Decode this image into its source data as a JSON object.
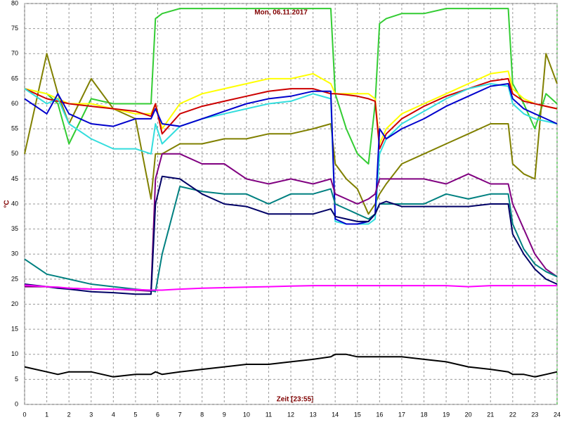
{
  "chart_data": {
    "type": "line",
    "title": "Mon, 06.11.2017",
    "xlabel": "Zeit [23:55]",
    "ylabel": "°C",
    "x": [
      0,
      1,
      1.5,
      2,
      3,
      4,
      5,
      5.7,
      5.9,
      6.2,
      7,
      8,
      9,
      10,
      11,
      12,
      13,
      13.8,
      14,
      14.5,
      15,
      15.5,
      15.8,
      16,
      16.3,
      17,
      18,
      19,
      20,
      21,
      21.8,
      22,
      22.5,
      23,
      23.5,
      24
    ],
    "series": [
      {
        "color": "#33cc33",
        "values": [
          63,
          62,
          60,
          52,
          61,
          60,
          60,
          60,
          77,
          78,
          79,
          79,
          79,
          79,
          79,
          79,
          79,
          79,
          62,
          55,
          50,
          48,
          60,
          76,
          77,
          78,
          78,
          79,
          79,
          79,
          79,
          64,
          60,
          55,
          62,
          60
        ]
      },
      {
        "color": "#808000",
        "values": [
          50,
          70,
          62,
          56,
          65,
          59,
          57,
          41,
          50,
          50,
          52,
          52,
          53,
          53,
          54,
          54,
          55,
          56,
          48,
          45,
          43,
          38,
          40,
          42,
          44,
          48,
          50,
          52,
          54,
          56,
          56,
          48,
          46,
          45,
          70,
          64
        ]
      },
      {
        "color": "#ffff00",
        "values": [
          63,
          62,
          61,
          60,
          60,
          59,
          58,
          58,
          60,
          55,
          60,
          62,
          63,
          64,
          65,
          65,
          66,
          64,
          62,
          62,
          62,
          62,
          61,
          52,
          55,
          58,
          60,
          62,
          64,
          66,
          66.5,
          63,
          61,
          60,
          59.5,
          59
        ]
      },
      {
        "color": "#cc0000",
        "values": [
          63,
          61,
          60.5,
          60,
          59.5,
          59,
          58.5,
          57.5,
          60,
          54,
          58,
          59.5,
          60.5,
          61.5,
          62.5,
          63,
          63,
          62,
          62,
          61.8,
          61.5,
          61,
          60.5,
          51,
          54,
          57,
          59.5,
          61.5,
          63,
          64.5,
          65,
          62,
          60.5,
          60,
          59.5,
          59
        ]
      },
      {
        "color": "#33dddd",
        "values": [
          63,
          60,
          61,
          56,
          53,
          51,
          51,
          50,
          56,
          52,
          55.5,
          57,
          58,
          59,
          60,
          60.5,
          62,
          61,
          36.5,
          36,
          36,
          36,
          37,
          50,
          53,
          56,
          58.5,
          61,
          63,
          64,
          63.5,
          60,
          58,
          57,
          56.5,
          56
        ]
      },
      {
        "color": "#0000cc",
        "values": [
          61,
          58,
          62,
          58,
          56,
          55.5,
          57,
          57,
          59,
          56,
          55.5,
          57,
          58.5,
          60,
          61,
          61.5,
          62.5,
          62.5,
          37,
          36,
          36,
          36.5,
          38,
          55,
          53,
          55,
          57,
          59.5,
          61.5,
          63.5,
          64,
          61,
          59,
          58,
          57,
          56
        ]
      },
      {
        "color": "#800080",
        "values": [
          23.5,
          23.5,
          23.3,
          23.2,
          23,
          23,
          22.8,
          22.6,
          45,
          50,
          50,
          48,
          48,
          45,
          44,
          45,
          44,
          45,
          42,
          41,
          40,
          41,
          42,
          45,
          45,
          45,
          45,
          44,
          46,
          44,
          44,
          40,
          35,
          30,
          27,
          25.5
        ]
      },
      {
        "color": "#008080",
        "values": [
          29,
          26,
          25.5,
          25,
          24,
          23.5,
          23,
          22.7,
          22.5,
          30,
          43.5,
          42.5,
          42,
          42,
          40,
          42,
          42,
          43,
          40,
          39,
          38,
          37,
          38,
          40,
          40,
          40,
          40,
          42,
          41,
          42,
          42,
          36,
          31,
          28,
          26.5,
          25.5
        ]
      },
      {
        "color": "#000066",
        "values": [
          24,
          23.5,
          23.2,
          23,
          22.5,
          22.3,
          22,
          22,
          40,
          45.5,
          45,
          42,
          40,
          39.5,
          38,
          38,
          38,
          39,
          37.5,
          37,
          36.5,
          36.5,
          38,
          40,
          40.5,
          39.5,
          39.5,
          39.5,
          39.5,
          40,
          40,
          34,
          30,
          27,
          25,
          24
        ]
      },
      {
        "color": "#ff00ff",
        "values": [
          23.8,
          23.5,
          23.4,
          23.2,
          23,
          23,
          22.9,
          22.8,
          22.8,
          22.8,
          23,
          23.2,
          23.3,
          23.4,
          23.5,
          23.6,
          23.7,
          23.7,
          23.7,
          23.7,
          23.7,
          23.7,
          23.7,
          23.7,
          23.7,
          23.7,
          23.7,
          23.7,
          23.5,
          23.7,
          23.7,
          23.7,
          23.7,
          23.7,
          23.7,
          23.7
        ]
      },
      {
        "color": "#000000",
        "values": [
          7.5,
          6.5,
          6,
          6.5,
          6.5,
          5.5,
          6,
          6,
          6.5,
          6,
          6.5,
          7,
          7.5,
          8,
          8,
          8.5,
          9,
          9.5,
          10,
          10,
          9.5,
          9.5,
          9.5,
          9.5,
          9.5,
          9.5,
          9,
          8.5,
          7.5,
          7,
          6.5,
          6,
          6,
          5.5,
          6,
          6.5
        ]
      }
    ],
    "xlim": [
      0,
      24
    ],
    "ylim": [
      0,
      80
    ],
    "xticks": [
      0,
      1,
      2,
      3,
      4,
      5,
      6,
      7,
      8,
      9,
      10,
      11,
      12,
      13,
      14,
      15,
      16,
      17,
      18,
      19,
      20,
      21,
      22,
      23,
      24
    ],
    "yticks": [
      0,
      5,
      10,
      15,
      20,
      25,
      30,
      35,
      40,
      45,
      50,
      55,
      60,
      65,
      70,
      75,
      80
    ],
    "grid": true
  }
}
